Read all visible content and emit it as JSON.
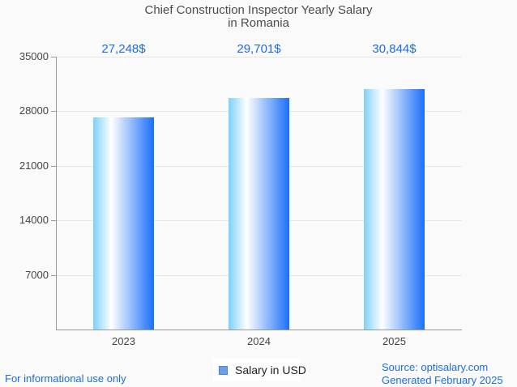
{
  "title": {
    "line1": "Chief Construction Inspector Yearly Salary",
    "line2": "in Romania"
  },
  "chart_data": {
    "type": "bar",
    "title": "Chief Construction Inspector Yearly Salary in Romania",
    "categories": [
      "2023",
      "2024",
      "2025"
    ],
    "series": [
      {
        "name": "Salary in USD",
        "values": [
          27248,
          29701,
          30844
        ]
      }
    ],
    "value_labels": [
      "27,248$",
      "29,701$",
      "30,844$"
    ],
    "xlabel": "",
    "ylabel": "",
    "ylim": [
      0,
      35000
    ],
    "y_ticks": [
      35000,
      28000,
      21000,
      14000,
      7000
    ],
    "grid": true,
    "legend_position": "bottom",
    "bar_gradient": [
      "#7ed1fc",
      "#ffffff",
      "#1b6ffc"
    ]
  },
  "legend": {
    "label": "Salary in USD"
  },
  "footer": {
    "disclaimer": "For informational use only",
    "source": "Source: optisalary.com",
    "generated": "Generated February 2025"
  },
  "colors": {
    "background": "#fafafa",
    "title_text": "#4c4c4c",
    "axis_text": "#444444",
    "gridline": "#e6e6e6",
    "axis_line": "#999999",
    "value_text": "#1b6ce8",
    "footer_text": "#1b6ce8",
    "legend_swatch_fill": "#6ba0e5",
    "legend_swatch_border": "#4d82cc"
  }
}
